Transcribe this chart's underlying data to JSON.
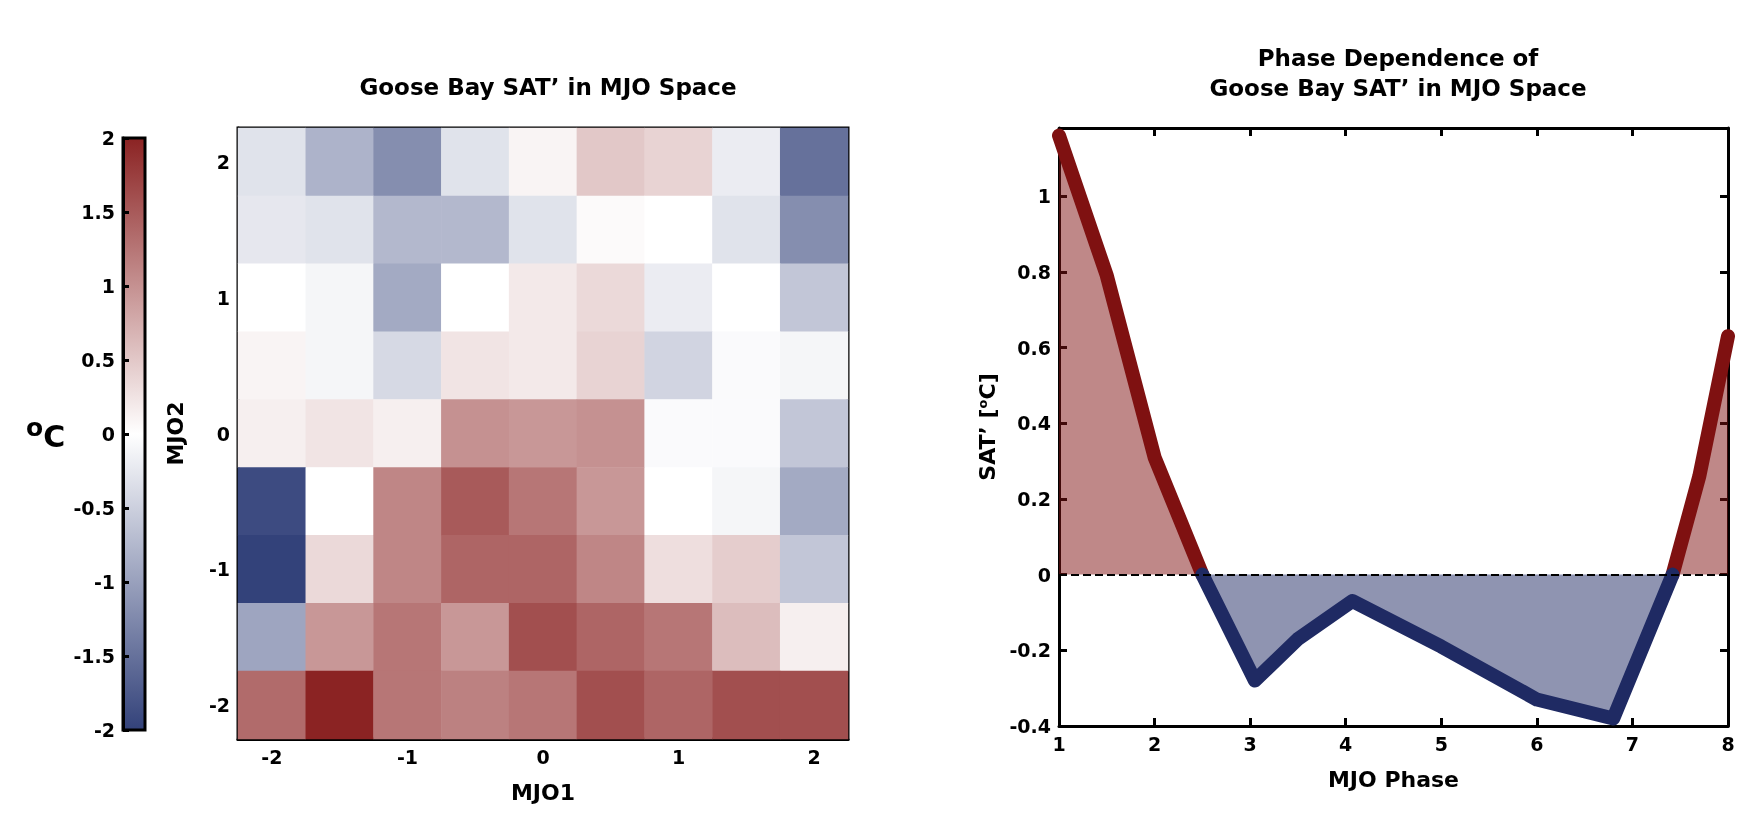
{
  "chart_data": [
    {
      "type": "heatmap",
      "title": "Goose Bay SAT’ in MJO Space",
      "xlabel": "MJO1",
      "ylabel": "MJO2",
      "clabel": "$^{o}$C",
      "categories": [
        "-2",
        null,
        "-1",
        null,
        "0",
        null,
        "1",
        null,
        "2"
      ],
      "y_categories": [
        "2",
        null,
        "1",
        null,
        "0",
        null,
        "-1",
        null,
        "-2"
      ],
      "cells": [
        [
          -0.3,
          -0.8,
          -1.2,
          -0.3,
          0.1,
          0.5,
          0.4,
          -0.2,
          -1.5
        ],
        [
          -0.25,
          -0.3,
          -0.75,
          -0.75,
          -0.3,
          0.05,
          0,
          -0.3,
          -1.2
        ],
        [
          0,
          -0.1,
          -0.9,
          0,
          0.2,
          0.35,
          -0.2,
          0,
          -0.6
        ],
        [
          0.1,
          -0.1,
          -0.4,
          0.25,
          0.2,
          0.4,
          -0.45,
          -0.05,
          -0.1
        ],
        [
          0.15,
          0.25,
          0.15,
          1.0,
          0.95,
          1.0,
          -0.05,
          -0.05,
          -0.6
        ],
        [
          -1.9,
          0,
          1.1,
          1.5,
          1.25,
          0.95,
          0,
          -0.1,
          -0.9
        ],
        [
          -2.0,
          0.35,
          1.1,
          1.4,
          1.4,
          1.1,
          0.3,
          0.45,
          -0.6
        ],
        [
          -0.95,
          0.95,
          1.25,
          0.95,
          1.6,
          1.4,
          1.25,
          0.6,
          0.15
        ],
        [
          1.35,
          2.0,
          1.25,
          1.15,
          1.25,
          1.6,
          1.4,
          1.6,
          1.6
        ]
      ],
      "clim": [
        -2,
        2
      ],
      "cticks": [
        -2,
        -1.5,
        -1,
        -0.5,
        0,
        0.5,
        1,
        1.5,
        2
      ]
    },
    {
      "type": "area",
      "title": "Phase Dependence of\nGoose Bay SAT’ in MJO Space",
      "xlabel": "MJO Phase",
      "ylabel": "SAT’ [$^{o}$C]",
      "x": [
        1,
        1.5,
        2,
        2.5,
        3.05,
        3.5,
        4.07,
        5,
        6,
        6.8,
        7.42,
        7.7,
        8
      ],
      "series": [
        {
          "color": "#7f1111",
          "values": [
            1.16,
            0.79,
            0.31,
            0,
            null,
            null,
            null,
            null,
            null,
            null,
            0,
            0.26,
            0.63
          ]
        },
        {
          "color": "#1f2a63",
          "values": [
            null,
            null,
            null,
            0,
            -0.28,
            -0.17,
            -0.07,
            -0.19,
            -0.33,
            -0.38,
            0,
            null,
            null
          ]
        }
      ],
      "xlim": [
        1,
        8
      ],
      "xticks": [
        1,
        2,
        3,
        4,
        5,
        6,
        7,
        8
      ],
      "ylim": [
        -0.4,
        1.18
      ],
      "yticks": [
        -0.4,
        -0.2,
        0,
        0.2,
        0.4,
        0.6,
        0.8,
        1
      ],
      "ref_lines": [
        {
          "axis": "y",
          "value": 0,
          "color": "#000000",
          "line_style": "dashed"
        }
      ],
      "grid": false
    }
  ]
}
